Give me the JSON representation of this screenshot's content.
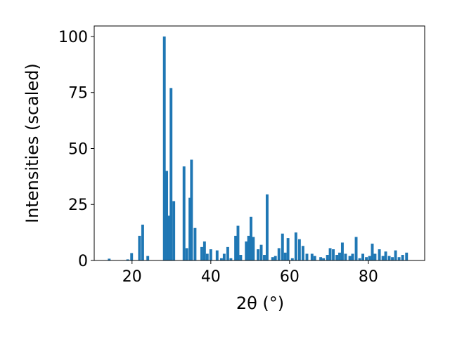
{
  "chart_data": {
    "type": "bar",
    "x_label": "2θ (°)",
    "y_label": "Intensities (scaled)",
    "x": [
      14.2,
      18.9,
      19.9,
      21.9,
      22.7,
      24.0,
      28.2,
      28.8,
      29.4,
      29.9,
      30.6,
      33.2,
      33.9,
      34.7,
      35.1,
      36.0,
      37.7,
      38.4,
      39.1,
      40.0,
      41.6,
      42.7,
      43.4,
      44.3,
      45.1,
      46.3,
      46.9,
      47.6,
      49.0,
      49.6,
      50.2,
      50.8,
      52.0,
      52.8,
      53.6,
      54.3,
      55.7,
      56.4,
      57.3,
      58.2,
      58.9,
      59.6,
      60.7,
      61.6,
      62.5,
      63.4,
      64.4,
      65.7,
      66.4,
      67.9,
      68.6,
      69.6,
      70.3,
      71.1,
      72.0,
      72.7,
      73.4,
      74.2,
      75.3,
      76.0,
      76.9,
      77.8,
      78.6,
      79.5,
      80.3,
      81.0,
      81.7,
      82.8,
      83.7,
      84.4,
      85.3,
      86.1,
      86.9,
      87.8,
      88.7,
      89.7
    ],
    "values": [
      0.8,
      0.5,
      3.3,
      11,
      16,
      2,
      100,
      40,
      20,
      77,
      26.5,
      42,
      5.5,
      28,
      45,
      14.5,
      6,
      8.5,
      3,
      5,
      4.5,
      1,
      3,
      6,
      1,
      11,
      15.5,
      2.5,
      8.5,
      11,
      19.5,
      10.5,
      5,
      7,
      2.5,
      29.5,
      1.5,
      2,
      5.5,
      12,
      3.5,
      10,
      1,
      12.5,
      9.5,
      6.5,
      3,
      3,
      2,
      1.5,
      1,
      2.5,
      5.5,
      5,
      2.5,
      3.5,
      8,
      3,
      2,
      3,
      10.5,
      1,
      3,
      1.5,
      2,
      7.5,
      3,
      5,
      2,
      4,
      2,
      1.5,
      4.5,
      1.5,
      2.5,
      3.5
    ],
    "color": "#1f77b4",
    "xlim": [
      10.4,
      94.3
    ],
    "xticks": [
      20,
      40,
      60,
      80
    ],
    "ylim": [
      0,
      104.7
    ],
    "yticks": [
      0,
      25,
      50,
      75,
      100
    ]
  }
}
